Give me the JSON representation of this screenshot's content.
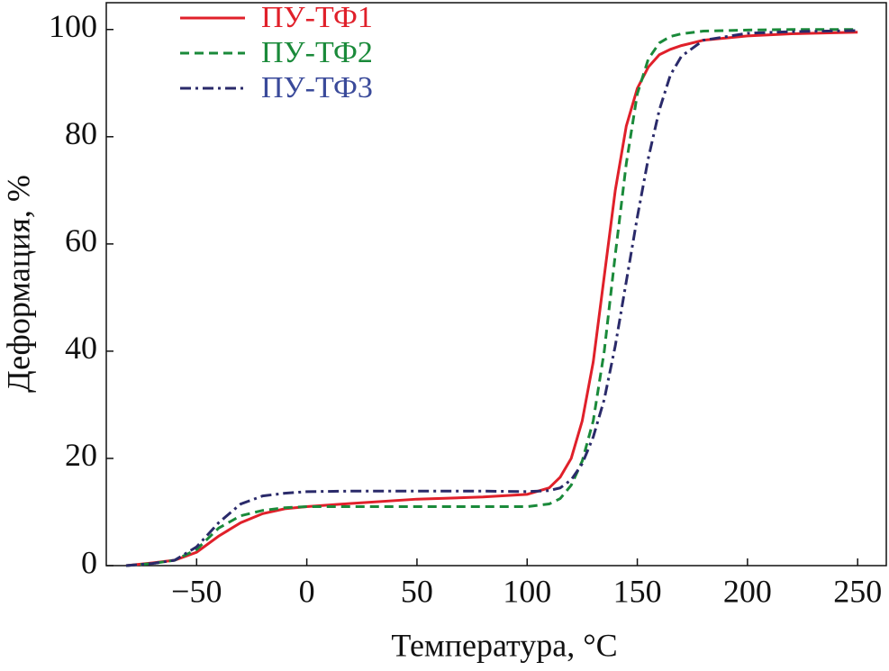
{
  "chart_data": {
    "type": "line",
    "x_label": "Температура, °C",
    "y_label": "Деформация, %",
    "x": [
      -82,
      -70,
      -60,
      -50,
      -40,
      -30,
      -20,
      -10,
      0,
      20,
      50,
      80,
      100,
      110,
      115,
      120,
      125,
      130,
      135,
      140,
      145,
      150,
      155,
      160,
      165,
      170,
      180,
      200,
      220,
      250
    ],
    "series": [
      {
        "name": "ПУ-ТФ1",
        "color": "#e0202a",
        "linestyle": "solid",
        "values": [
          0,
          0.5,
          1,
          2.5,
          5.5,
          8,
          9.7,
          10.6,
          11,
          11.6,
          12.4,
          12.8,
          13.3,
          14.5,
          16.5,
          20,
          27,
          38,
          54,
          70,
          82,
          89,
          93,
          95.3,
          96.3,
          97,
          98,
          98.8,
          99.2,
          99.5
        ]
      },
      {
        "name": "ПУ-ТФ2",
        "color": "#1a8a3a",
        "linestyle": "dashed",
        "values": [
          0,
          0.4,
          1,
          3,
          7,
          9.3,
          10.3,
          10.8,
          11,
          11,
          11,
          11,
          11,
          11.5,
          12.5,
          15,
          19.5,
          27,
          40,
          58,
          75,
          88,
          94.5,
          97.5,
          98.7,
          99.2,
          99.7,
          99.9,
          100,
          100
        ]
      },
      {
        "name": "ПУ-ТФ3",
        "color": "#2a2a6a",
        "text_color": "#3a4a9a",
        "linestyle": "dashdot",
        "values": [
          0,
          0.4,
          1,
          3.5,
          8,
          11.5,
          13,
          13.5,
          13.8,
          13.9,
          13.9,
          13.9,
          13.8,
          14,
          14.5,
          16,
          19,
          24,
          31,
          41,
          53,
          65,
          76,
          85,
          91.5,
          95,
          98,
          99.3,
          99.6,
          99.8
        ]
      }
    ],
    "xlim": [
      -91,
      263
    ],
    "ylim": [
      0,
      105
    ],
    "xticks": [
      {
        "value": -50,
        "label": "−50"
      },
      0,
      50,
      100,
      150,
      200,
      250
    ],
    "yticks": [
      0,
      20,
      40,
      60,
      80,
      100
    ],
    "legend": "upper left",
    "grid": false
  }
}
